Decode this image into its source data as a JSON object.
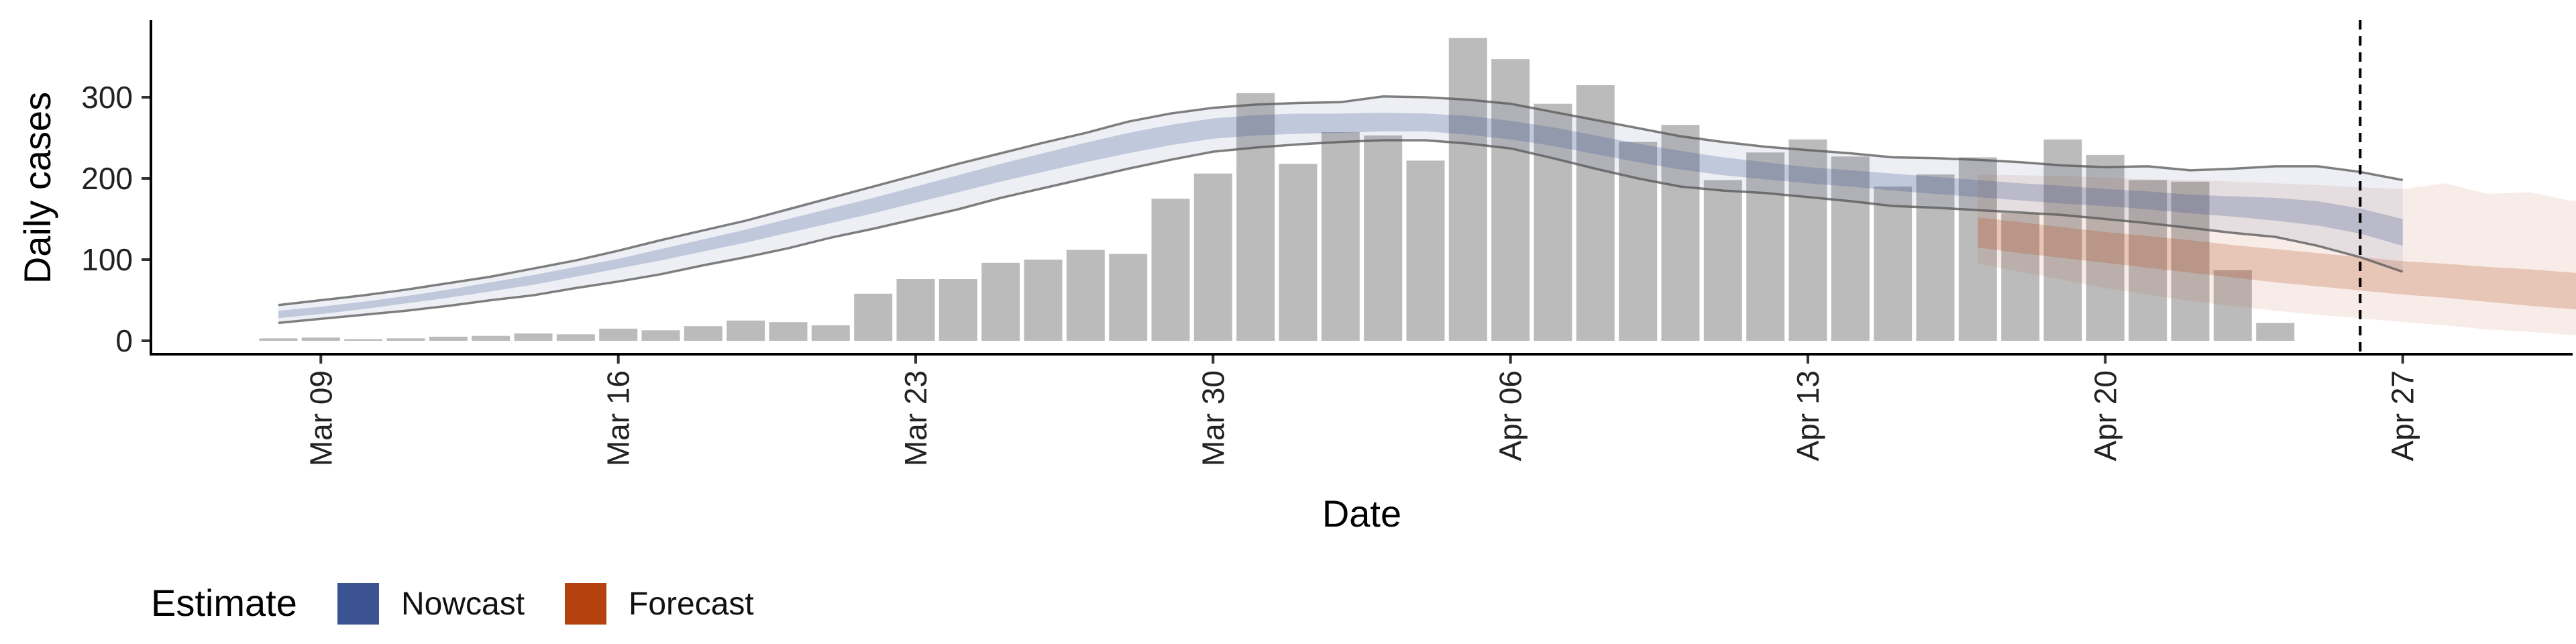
{
  "chart_data": {
    "type": "bar",
    "xlabel": "Date",
    "ylabel": "Daily cases",
    "ylim": [
      0,
      390
    ],
    "yticks": [
      0,
      100,
      200,
      300
    ],
    "xticks": [
      {
        "date": "2020-03-09",
        "label": "Mar 09"
      },
      {
        "date": "2020-03-16",
        "label": "Mar 16"
      },
      {
        "date": "2020-03-23",
        "label": "Mar 23"
      },
      {
        "date": "2020-03-30",
        "label": "Mar 30"
      },
      {
        "date": "2020-04-06",
        "label": "Apr 06"
      },
      {
        "date": "2020-04-13",
        "label": "Apr 13"
      },
      {
        "date": "2020-04-20",
        "label": "Apr 20"
      },
      {
        "date": "2020-04-27",
        "label": "Apr 27"
      }
    ],
    "xlim": [
      "2020-03-05",
      "2020-05-01"
    ],
    "cutoff_date": "2020-04-26",
    "grid": false,
    "bars": {
      "color": "#bbbbbb",
      "start_date": "2020-03-08",
      "values": [
        3,
        4,
        2,
        3,
        5,
        6,
        9,
        8,
        15,
        13,
        18,
        25,
        23,
        19,
        58,
        76,
        76,
        96,
        100,
        112,
        107,
        175,
        206,
        305,
        218,
        257,
        253,
        222,
        373,
        347,
        292,
        315,
        245,
        266,
        198,
        232,
        248,
        227,
        190,
        205,
        226,
        157,
        248,
        229,
        198,
        196,
        87,
        22
      ]
    },
    "nowcast": {
      "color": "#3b5391",
      "start_date": "2020-03-08",
      "outer_upper": [
        44,
        50,
        56,
        63,
        71,
        79,
        89,
        99,
        111,
        124,
        136,
        148,
        162,
        176,
        190,
        204,
        218,
        231,
        244,
        256,
        270,
        280,
        287,
        291,
        293,
        294,
        301,
        300,
        297,
        292,
        282,
        272,
        262,
        252,
        245,
        239,
        235,
        231,
        226,
        225,
        223,
        220,
        216,
        214,
        215,
        210,
        212,
        215,
        215,
        208,
        198
      ],
      "outer_lower": [
        22,
        27,
        32,
        37,
        43,
        50,
        56,
        65,
        73,
        82,
        93,
        103,
        114,
        127,
        138,
        150,
        162,
        176,
        188,
        200,
        212,
        223,
        233,
        238,
        242,
        245,
        247,
        247,
        243,
        237,
        225,
        212,
        200,
        190,
        185,
        182,
        177,
        172,
        166,
        164,
        161,
        158,
        155,
        150,
        145,
        139,
        133,
        128,
        117,
        103,
        85
      ],
      "inner_upper": [
        37,
        42,
        48,
        55,
        63,
        72,
        81,
        91,
        101,
        113,
        125,
        137,
        150,
        163,
        176,
        190,
        204,
        218,
        231,
        244,
        256,
        266,
        274,
        278,
        280,
        280,
        281,
        280,
        277,
        271,
        263,
        253,
        243,
        234,
        226,
        220,
        214,
        210,
        206,
        202,
        198,
        194,
        191,
        187,
        184,
        180,
        178,
        176,
        172,
        163,
        150
      ],
      "inner_lower": [
        28,
        33,
        39,
        46,
        53,
        61,
        69,
        79,
        89,
        99,
        110,
        121,
        133,
        145,
        157,
        170,
        183,
        196,
        208,
        220,
        231,
        241,
        249,
        253,
        255,
        256,
        258,
        258,
        254,
        248,
        240,
        230,
        220,
        211,
        204,
        199,
        194,
        190,
        185,
        181,
        177,
        173,
        169,
        166,
        162,
        157,
        153,
        148,
        142,
        132,
        117
      ]
    },
    "forecast": {
      "color": "#b5410f",
      "start_date": "2020-04-17",
      "outer_upper": [
        205,
        204,
        203,
        201,
        199,
        198,
        196,
        194,
        192,
        189,
        187,
        194,
        181,
        183,
        172,
        173,
        167,
        165,
        162,
        161
      ],
      "outer_lower": [
        95,
        85,
        75,
        65,
        57,
        49,
        43,
        37,
        32,
        28,
        23,
        19,
        14,
        11,
        7,
        4,
        2,
        0,
        0,
        0
      ],
      "inner_upper": [
        152,
        146,
        140,
        134,
        129,
        124,
        118,
        113,
        108,
        103,
        98,
        95,
        91,
        88,
        84,
        80,
        75,
        70,
        64,
        56
      ],
      "inner_lower": [
        115,
        108,
        102,
        96,
        90,
        84,
        78,
        72,
        67,
        62,
        57,
        53,
        48,
        43,
        39,
        34,
        28,
        22,
        15,
        5
      ]
    }
  },
  "legend": {
    "title": "Estimate",
    "items": [
      {
        "label": "Nowcast",
        "color": "#3b5391"
      },
      {
        "label": "Forecast",
        "color": "#b5410f"
      }
    ]
  }
}
